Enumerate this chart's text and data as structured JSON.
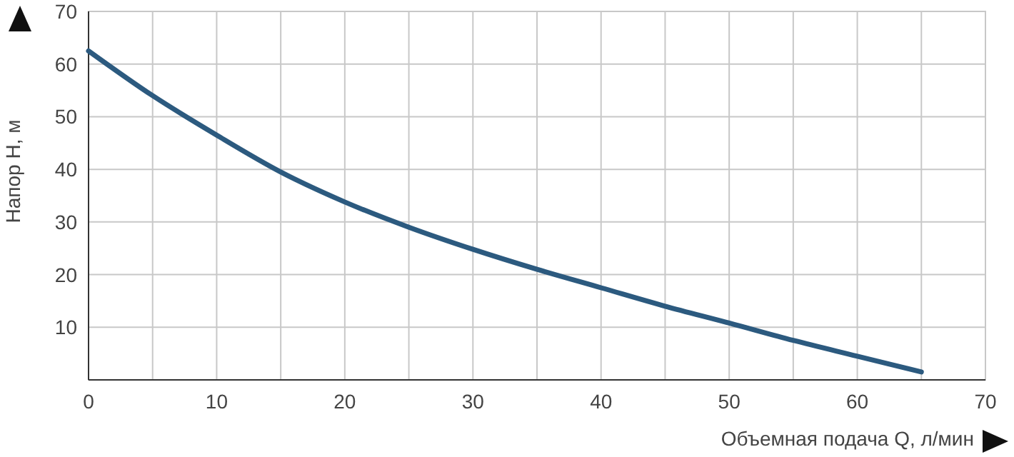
{
  "chart_data": {
    "type": "line",
    "xlabel": "Объемная подача Q, л/мин",
    "ylabel": "Напор H, м",
    "x": [
      0,
      5,
      10,
      15,
      20,
      25,
      30,
      35,
      40,
      45,
      50,
      55,
      60,
      65
    ],
    "series": [
      {
        "color": "#2c5a7f",
        "values": [
          62.5,
          54,
          46.5,
          39.5,
          33.8,
          29,
          24.8,
          21,
          17.5,
          14,
          10.8,
          7.5,
          4.5,
          1.5
        ]
      }
    ],
    "xlim": [
      0,
      70
    ],
    "xticks": [
      0,
      {
        "value": 5,
        "label": null
      },
      10,
      {
        "value": 15,
        "label": null
      },
      20,
      {
        "value": 25,
        "label": null
      },
      30,
      {
        "value": 35,
        "label": null
      },
      40,
      {
        "value": 45,
        "label": null
      },
      50,
      {
        "value": 55,
        "label": null
      },
      60,
      {
        "value": 65,
        "label": null
      },
      70
    ],
    "ylim": [
      0,
      70
    ],
    "yticks": [
      10,
      20,
      30,
      40,
      50,
      60,
      70
    ],
    "grid": true,
    "marker": "none",
    "line_style": "solid"
  }
}
